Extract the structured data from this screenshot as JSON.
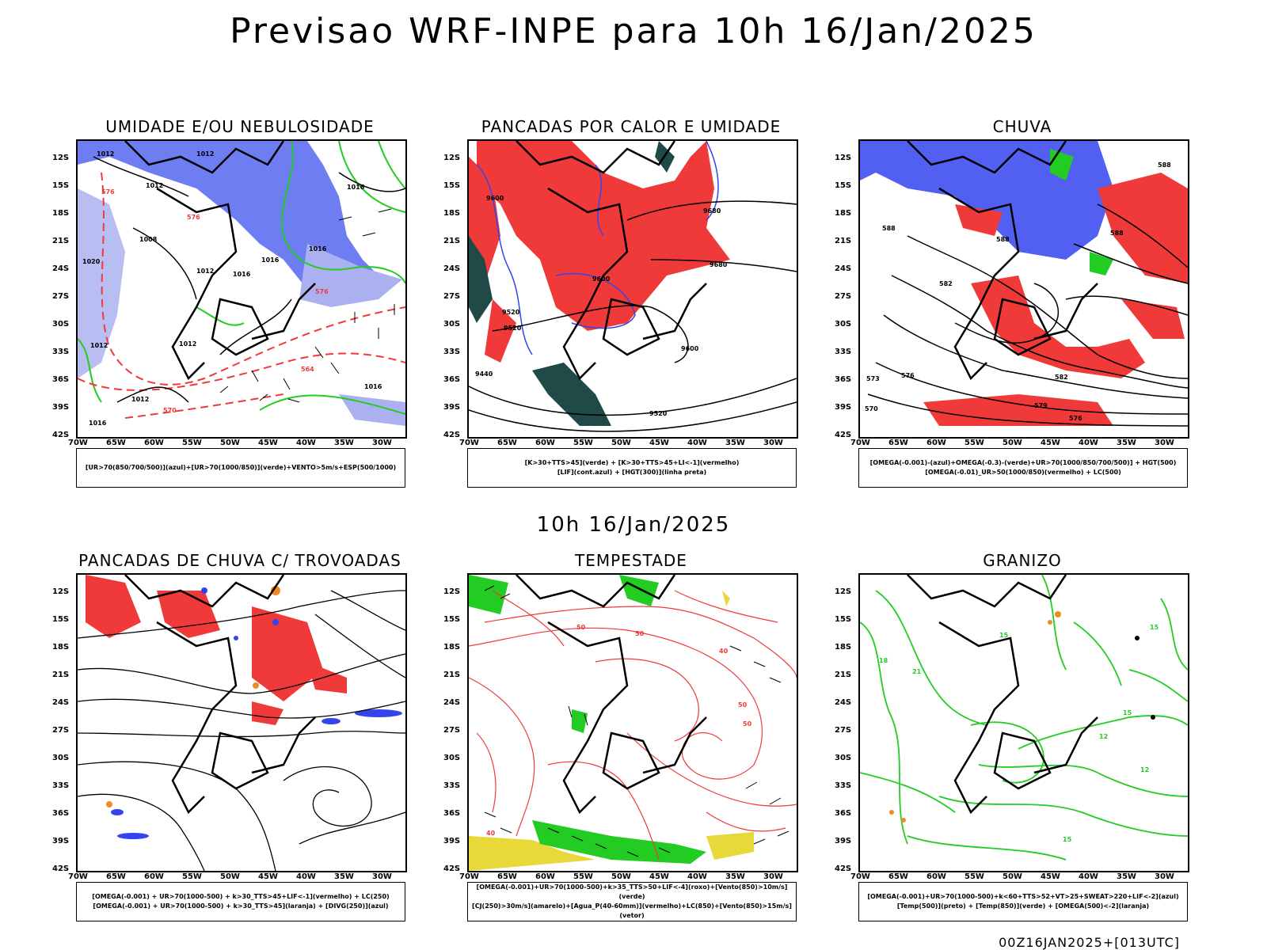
{
  "title": "Previsao WRF-INPE  para 10h 16/Jan/2025",
  "mid_title": "10h 16/Jan/2025",
  "footer": "00Z16JAN2025+[013UTC]",
  "lat_ticks": [
    "12S",
    "15S",
    "18S",
    "21S",
    "24S",
    "27S",
    "30S",
    "33S",
    "36S",
    "39S",
    "42S"
  ],
  "lon_ticks": [
    "70W",
    "65W",
    "60W",
    "55W",
    "50W",
    "45W",
    "40W",
    "35W",
    "30W"
  ],
  "colors": {
    "blue": "#3344ee",
    "lightblue": "#aab0f0",
    "green": "#22cc22",
    "red": "#f03a3a",
    "dark": "#1f4a48",
    "orange": "#f08a24",
    "yellow": "#e8d83a",
    "black": "#000000"
  },
  "panels": [
    {
      "title": "UMIDADE E/OU NEBULOSIDADE",
      "legend": [
        "[UR>70(850/700/500)](azul)+[UR>70(1000/850)](verde)+VENTO>5m/s+ESP(500/1000)"
      ],
      "labels": [
        "1012",
        "1012",
        "1016",
        "1012",
        "1008",
        "1012",
        "1016",
        "1016",
        "1016",
        "1012",
        "1016",
        "1012",
        "1012",
        "1016",
        "576",
        "576",
        "576",
        "570",
        "564",
        "1020"
      ]
    },
    {
      "title": "PANCADAS POR CALOR E UMIDADE",
      "legend": [
        "[K>30+TTS>45](verde) + [K>30+TTS>45+LI<-1](vermelho)",
        "[LIF](cont.azul) + [HGT(300)](linha preta)"
      ],
      "labels": [
        "9600",
        "9520",
        "9600",
        "9680",
        "9680",
        "9520",
        "9600",
        "9440",
        "9520"
      ]
    },
    {
      "title": "CHUVA",
      "legend": [
        "[OMEGA(-0.001)-(azul)+OMEGA(-0.3)-(verde)+UR>70(1000/850/700/500)] + HGT(500)",
        "[OMEGA(-0.01)_UR>50(1000/850)(vermelho) + LC(500)"
      ],
      "labels": [
        "588",
        "588",
        "588",
        "588",
        "582",
        "576",
        "573",
        "570",
        "582",
        "579",
        "576"
      ]
    },
    {
      "title": "PANCADAS DE CHUVA C/ TROVOADAS",
      "legend": [
        "[OMEGA(-0.001) + UR>70(1000-500) + k>30_TTS>45+LIF<-1](vermelho) + LC(250)",
        "[OMEGA(-0.001) + UR>70(1000-500) + k>30_TTS>45](laranja) + [DIVG(250)](azul)"
      ],
      "labels": []
    },
    {
      "title": "TEMPESTADE",
      "legend": [
        "[OMEGA(-0.001)+UR>70(1000-500)+k>35_TTS>50+LIF<-4](roxo)+[Vento(850)>10m/s](verde)",
        "[CJ(250)>30m/s](amarelo)+[Agua_P(40-60mm)](vermelho)+LC(850)+[Vento(850)>15m/s](vetor)"
      ],
      "labels": [
        "50",
        "50",
        "50",
        "50",
        "40",
        "40"
      ]
    },
    {
      "title": "GRANIZO",
      "legend": [
        "[OMEGA(-0.001)+UR>70(1000-500)+k<60+TTS>52+VT>25+SWEAT>220+LIF<-2](azul)",
        "[Temp(500)](preto) + [Temp(850)](verde) + [OMEGA(500)<-2](laranja)"
      ],
      "labels": [
        "15",
        "18",
        "21",
        "15",
        "12",
        "15",
        "12",
        "15"
      ]
    }
  ]
}
